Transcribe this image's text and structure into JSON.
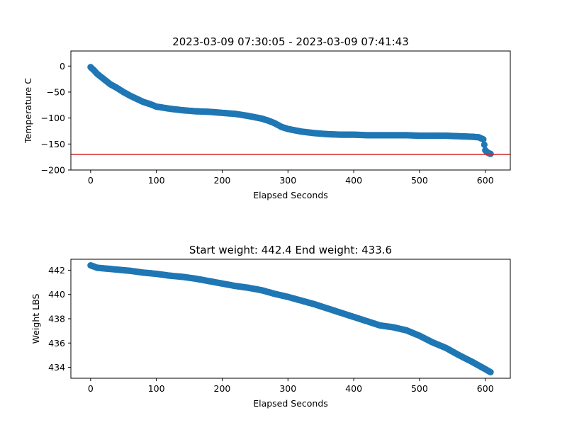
{
  "chart_data": [
    {
      "type": "scatter",
      "title": "2023-03-09 07:30:05 - 2023-03-09 07:41:43",
      "xlabel": "Elapsed Seconds",
      "ylabel": "Temperature C",
      "xlim": [
        -30,
        638
      ],
      "ylim": [
        -200,
        29
      ],
      "xticks": [
        0,
        100,
        200,
        300,
        400,
        500,
        600
      ],
      "yticks": [
        0,
        -50,
        -100,
        -150,
        -200
      ],
      "grid": false,
      "marker_color": "#1f77b4",
      "reference_line": {
        "y": -170,
        "color": "#d62728"
      },
      "points": [
        [
          0,
          -2
        ],
        [
          5,
          -8
        ],
        [
          10,
          -15
        ],
        [
          15,
          -20
        ],
        [
          20,
          -25
        ],
        [
          25,
          -30
        ],
        [
          30,
          -35
        ],
        [
          40,
          -42
        ],
        [
          50,
          -50
        ],
        [
          60,
          -57
        ],
        [
          70,
          -63
        ],
        [
          80,
          -69
        ],
        [
          90,
          -73
        ],
        [
          100,
          -78
        ],
        [
          120,
          -82
        ],
        [
          140,
          -85
        ],
        [
          160,
          -87
        ],
        [
          180,
          -88
        ],
        [
          200,
          -90
        ],
        [
          220,
          -92
        ],
        [
          240,
          -96
        ],
        [
          260,
          -101
        ],
        [
          270,
          -105
        ],
        [
          280,
          -110
        ],
        [
          290,
          -117
        ],
        [
          300,
          -121
        ],
        [
          320,
          -126
        ],
        [
          340,
          -129
        ],
        [
          360,
          -131
        ],
        [
          380,
          -132
        ],
        [
          400,
          -132
        ],
        [
          420,
          -133
        ],
        [
          440,
          -133
        ],
        [
          460,
          -133
        ],
        [
          480,
          -133
        ],
        [
          500,
          -134
        ],
        [
          520,
          -134
        ],
        [
          540,
          -134
        ],
        [
          560,
          -135
        ],
        [
          580,
          -136
        ],
        [
          590,
          -137
        ],
        [
          597,
          -141
        ],
        [
          600,
          -162
        ],
        [
          603,
          -166
        ],
        [
          606,
          -168
        ],
        [
          608,
          -169
        ]
      ]
    },
    {
      "type": "scatter",
      "title": "Start weight: 442.4 End weight: 433.6",
      "xlabel": "Elapsed Seconds",
      "ylabel": "Weight LBS",
      "xlim": [
        -30,
        638
      ],
      "ylim": [
        433.1,
        442.9
      ],
      "xticks": [
        0,
        100,
        200,
        300,
        400,
        500,
        600
      ],
      "yticks": [
        434,
        436,
        438,
        440,
        442
      ],
      "grid": false,
      "marker_color": "#1f77b4",
      "points": [
        [
          0,
          442.4
        ],
        [
          5,
          442.3
        ],
        [
          10,
          442.2
        ],
        [
          20,
          442.15
        ],
        [
          40,
          442.05
        ],
        [
          60,
          441.95
        ],
        [
          80,
          441.8
        ],
        [
          100,
          441.7
        ],
        [
          120,
          441.55
        ],
        [
          140,
          441.45
        ],
        [
          160,
          441.3
        ],
        [
          180,
          441.1
        ],
        [
          200,
          440.9
        ],
        [
          220,
          440.7
        ],
        [
          240,
          440.55
        ],
        [
          260,
          440.35
        ],
        [
          280,
          440.05
        ],
        [
          300,
          439.8
        ],
        [
          320,
          439.5
        ],
        [
          340,
          439.2
        ],
        [
          360,
          438.85
        ],
        [
          380,
          438.5
        ],
        [
          400,
          438.15
        ],
        [
          420,
          437.8
        ],
        [
          440,
          437.45
        ],
        [
          460,
          437.3
        ],
        [
          480,
          437.05
        ],
        [
          500,
          436.6
        ],
        [
          520,
          436.05
        ],
        [
          540,
          435.6
        ],
        [
          560,
          435.0
        ],
        [
          580,
          434.45
        ],
        [
          600,
          433.85
        ],
        [
          608,
          433.6
        ]
      ]
    }
  ]
}
